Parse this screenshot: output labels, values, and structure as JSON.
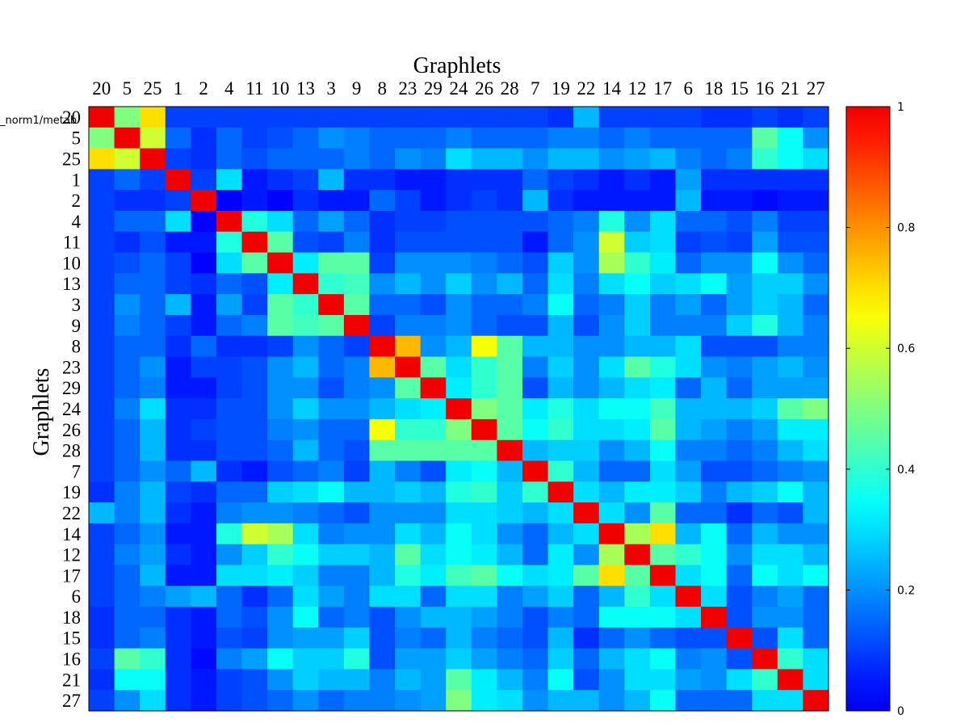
{
  "chart_data": {
    "type": "heatmap",
    "title": "Graphlets",
    "xlabel": "Graphlets",
    "ylabel": "Graphlets",
    "stray_label": "_norm1/metab",
    "order": [
      20,
      5,
      25,
      1,
      2,
      4,
      11,
      10,
      13,
      3,
      9,
      8,
      23,
      29,
      24,
      26,
      28,
      7,
      19,
      22,
      14,
      12,
      17,
      6,
      18,
      15,
      16,
      21,
      27
    ],
    "row_labels": [
      "20",
      "5",
      "25",
      "1",
      "2",
      "4",
      "11",
      "10",
      "13",
      "3",
      "9",
      "8",
      "23",
      "29",
      "24",
      "26",
      "28",
      "7",
      "19",
      "22",
      "14",
      "12",
      "17",
      "6",
      "18",
      "15",
      "16",
      "21",
      "27"
    ],
    "col_labels": [
      "20",
      "5",
      "25",
      "1",
      "2",
      "4",
      "11",
      "10",
      "13",
      "3",
      "9",
      "8",
      "23",
      "29",
      "24",
      "26",
      "28",
      "7",
      "19",
      "22",
      "14",
      "12",
      "17",
      "6",
      "18",
      "15",
      "16",
      "21",
      "27"
    ],
    "colorbar": {
      "min": 0,
      "max": 1,
      "ticks": [
        0,
        0.2,
        0.4,
        0.6,
        0.8,
        1
      ],
      "tick_labels": [
        "0",
        "0.2",
        "0.4",
        "0.6",
        "0.8",
        "1"
      ]
    },
    "colormap": "jet",
    "values": [
      [
        1.0,
        0.5,
        0.7,
        0.1,
        0.1,
        0.1,
        0.1,
        0.1,
        0.1,
        0.1,
        0.1,
        0.1,
        0.1,
        0.1,
        0.1,
        0.1,
        0.1,
        0.1,
        0.08,
        0.25,
        0.1,
        0.1,
        0.1,
        0.1,
        0.08,
        0.08,
        0.1,
        0.08,
        0.1
      ],
      [
        0.5,
        1.0,
        0.6,
        0.15,
        0.08,
        0.15,
        0.1,
        0.12,
        0.15,
        0.2,
        0.18,
        0.15,
        0.15,
        0.15,
        0.18,
        0.15,
        0.15,
        0.15,
        0.18,
        0.18,
        0.15,
        0.18,
        0.15,
        0.15,
        0.15,
        0.15,
        0.45,
        0.35,
        0.2
      ],
      [
        0.7,
        0.6,
        1.0,
        0.1,
        0.08,
        0.15,
        0.12,
        0.15,
        0.15,
        0.15,
        0.18,
        0.15,
        0.2,
        0.18,
        0.3,
        0.25,
        0.25,
        0.2,
        0.25,
        0.25,
        0.2,
        0.22,
        0.25,
        0.18,
        0.15,
        0.18,
        0.4,
        0.35,
        0.3
      ],
      [
        0.1,
        0.15,
        0.1,
        1.0,
        0.1,
        0.3,
        0.05,
        0.08,
        0.1,
        0.25,
        0.08,
        0.08,
        0.05,
        0.05,
        0.08,
        0.08,
        0.08,
        0.15,
        0.1,
        0.08,
        0.05,
        0.08,
        0.05,
        0.22,
        0.08,
        0.08,
        0.08,
        0.08,
        0.08
      ],
      [
        0.1,
        0.08,
        0.08,
        0.1,
        1.0,
        0.02,
        0.05,
        0.02,
        0.08,
        0.05,
        0.05,
        0.15,
        0.1,
        0.05,
        0.08,
        0.1,
        0.08,
        0.25,
        0.08,
        0.05,
        0.05,
        0.05,
        0.05,
        0.25,
        0.05,
        0.05,
        0.03,
        0.05,
        0.05
      ],
      [
        0.1,
        0.15,
        0.15,
        0.3,
        0.02,
        1.0,
        0.38,
        0.3,
        0.15,
        0.22,
        0.15,
        0.08,
        0.1,
        0.1,
        0.12,
        0.12,
        0.12,
        0.12,
        0.15,
        0.18,
        0.38,
        0.2,
        0.3,
        0.15,
        0.15,
        0.12,
        0.18,
        0.1,
        0.1
      ],
      [
        0.1,
        0.08,
        0.12,
        0.05,
        0.05,
        0.38,
        1.0,
        0.45,
        0.12,
        0.1,
        0.18,
        0.08,
        0.12,
        0.12,
        0.12,
        0.12,
        0.12,
        0.05,
        0.15,
        0.2,
        0.6,
        0.28,
        0.3,
        0.1,
        0.12,
        0.1,
        0.22,
        0.12,
        0.12
      ],
      [
        0.1,
        0.12,
        0.15,
        0.1,
        0.02,
        0.3,
        0.45,
        1.0,
        0.32,
        0.45,
        0.45,
        0.1,
        0.2,
        0.2,
        0.2,
        0.18,
        0.15,
        0.12,
        0.28,
        0.2,
        0.55,
        0.4,
        0.32,
        0.15,
        0.2,
        0.2,
        0.35,
        0.2,
        0.15
      ],
      [
        0.1,
        0.15,
        0.15,
        0.1,
        0.08,
        0.15,
        0.12,
        0.32,
        1.0,
        0.4,
        0.42,
        0.2,
        0.25,
        0.2,
        0.28,
        0.2,
        0.25,
        0.15,
        0.3,
        0.18,
        0.3,
        0.35,
        0.28,
        0.3,
        0.35,
        0.22,
        0.28,
        0.28,
        0.2
      ],
      [
        0.1,
        0.2,
        0.15,
        0.25,
        0.05,
        0.22,
        0.1,
        0.45,
        0.4,
        1.0,
        0.45,
        0.15,
        0.15,
        0.12,
        0.2,
        0.15,
        0.15,
        0.18,
        0.35,
        0.15,
        0.18,
        0.28,
        0.18,
        0.22,
        0.15,
        0.22,
        0.28,
        0.25,
        0.15
      ],
      [
        0.1,
        0.18,
        0.15,
        0.1,
        0.05,
        0.15,
        0.18,
        0.45,
        0.42,
        0.45,
        1.0,
        0.1,
        0.18,
        0.18,
        0.2,
        0.15,
        0.12,
        0.12,
        0.25,
        0.12,
        0.2,
        0.28,
        0.18,
        0.18,
        0.18,
        0.28,
        0.38,
        0.25,
        0.18
      ],
      [
        0.1,
        0.15,
        0.15,
        0.08,
        0.15,
        0.08,
        0.08,
        0.1,
        0.2,
        0.15,
        0.1,
        1.0,
        0.75,
        0.2,
        0.25,
        0.65,
        0.45,
        0.25,
        0.25,
        0.2,
        0.2,
        0.25,
        0.25,
        0.3,
        0.12,
        0.12,
        0.12,
        0.18,
        0.18
      ],
      [
        0.1,
        0.15,
        0.2,
        0.05,
        0.1,
        0.1,
        0.12,
        0.2,
        0.25,
        0.15,
        0.18,
        0.75,
        1.0,
        0.45,
        0.3,
        0.4,
        0.45,
        0.18,
        0.28,
        0.2,
        0.3,
        0.45,
        0.38,
        0.3,
        0.2,
        0.18,
        0.22,
        0.25,
        0.2
      ],
      [
        0.1,
        0.15,
        0.18,
        0.05,
        0.05,
        0.1,
        0.12,
        0.2,
        0.2,
        0.12,
        0.18,
        0.2,
        0.45,
        1.0,
        0.32,
        0.4,
        0.45,
        0.12,
        0.25,
        0.2,
        0.25,
        0.3,
        0.32,
        0.15,
        0.25,
        0.15,
        0.22,
        0.22,
        0.22
      ],
      [
        0.1,
        0.18,
        0.3,
        0.08,
        0.08,
        0.12,
        0.12,
        0.2,
        0.28,
        0.2,
        0.2,
        0.25,
        0.3,
        0.32,
        1.0,
        0.5,
        0.45,
        0.32,
        0.38,
        0.3,
        0.35,
        0.35,
        0.42,
        0.25,
        0.25,
        0.25,
        0.28,
        0.45,
        0.5
      ],
      [
        0.1,
        0.15,
        0.25,
        0.08,
        0.1,
        0.12,
        0.12,
        0.18,
        0.2,
        0.15,
        0.15,
        0.65,
        0.4,
        0.4,
        0.5,
        1.0,
        0.45,
        0.35,
        0.4,
        0.3,
        0.3,
        0.32,
        0.45,
        0.25,
        0.22,
        0.18,
        0.22,
        0.32,
        0.32
      ],
      [
        0.1,
        0.15,
        0.25,
        0.08,
        0.08,
        0.12,
        0.12,
        0.15,
        0.25,
        0.15,
        0.12,
        0.45,
        0.45,
        0.45,
        0.45,
        0.45,
        1.0,
        0.25,
        0.28,
        0.28,
        0.2,
        0.25,
        0.35,
        0.18,
        0.18,
        0.15,
        0.18,
        0.25,
        0.3
      ],
      [
        0.1,
        0.15,
        0.2,
        0.15,
        0.25,
        0.08,
        0.05,
        0.12,
        0.15,
        0.18,
        0.1,
        0.25,
        0.18,
        0.12,
        0.32,
        0.35,
        0.25,
        1.0,
        0.4,
        0.25,
        0.15,
        0.15,
        0.3,
        0.22,
        0.12,
        0.12,
        0.15,
        0.18,
        0.2
      ],
      [
        0.08,
        0.18,
        0.25,
        0.1,
        0.08,
        0.15,
        0.15,
        0.28,
        0.3,
        0.35,
        0.25,
        0.25,
        0.28,
        0.25,
        0.38,
        0.4,
        0.28,
        0.4,
        1.0,
        0.3,
        0.25,
        0.32,
        0.32,
        0.28,
        0.18,
        0.25,
        0.28,
        0.35,
        0.25
      ],
      [
        0.25,
        0.18,
        0.25,
        0.08,
        0.05,
        0.18,
        0.2,
        0.2,
        0.18,
        0.15,
        0.12,
        0.2,
        0.2,
        0.2,
        0.3,
        0.3,
        0.28,
        0.25,
        0.3,
        1.0,
        0.3,
        0.2,
        0.45,
        0.15,
        0.15,
        0.08,
        0.15,
        0.12,
        0.25
      ],
      [
        0.1,
        0.15,
        0.2,
        0.05,
        0.05,
        0.38,
        0.6,
        0.55,
        0.3,
        0.18,
        0.2,
        0.2,
        0.3,
        0.25,
        0.35,
        0.3,
        0.2,
        0.15,
        0.25,
        0.3,
        1.0,
        0.55,
        0.7,
        0.25,
        0.35,
        0.15,
        0.25,
        0.2,
        0.2
      ],
      [
        0.1,
        0.18,
        0.22,
        0.08,
        0.05,
        0.2,
        0.28,
        0.4,
        0.35,
        0.28,
        0.28,
        0.25,
        0.45,
        0.3,
        0.35,
        0.32,
        0.25,
        0.15,
        0.32,
        0.2,
        0.55,
        1.0,
        0.45,
        0.4,
        0.35,
        0.2,
        0.3,
        0.3,
        0.25
      ],
      [
        0.1,
        0.15,
        0.25,
        0.05,
        0.05,
        0.3,
        0.3,
        0.32,
        0.28,
        0.18,
        0.18,
        0.25,
        0.38,
        0.32,
        0.42,
        0.45,
        0.35,
        0.3,
        0.32,
        0.45,
        0.7,
        0.45,
        1.0,
        0.3,
        0.35,
        0.15,
        0.35,
        0.3,
        0.35
      ],
      [
        0.1,
        0.15,
        0.18,
        0.22,
        0.25,
        0.15,
        0.08,
        0.15,
        0.3,
        0.22,
        0.18,
        0.3,
        0.3,
        0.15,
        0.3,
        0.3,
        0.18,
        0.22,
        0.28,
        0.15,
        0.25,
        0.4,
        0.3,
        1.0,
        0.3,
        0.12,
        0.18,
        0.22,
        0.15
      ],
      [
        0.08,
        0.15,
        0.15,
        0.08,
        0.05,
        0.15,
        0.12,
        0.2,
        0.35,
        0.15,
        0.18,
        0.12,
        0.2,
        0.25,
        0.25,
        0.22,
        0.18,
        0.12,
        0.18,
        0.15,
        0.35,
        0.35,
        0.35,
        0.3,
        1.0,
        0.12,
        0.2,
        0.2,
        0.15
      ],
      [
        0.08,
        0.15,
        0.18,
        0.08,
        0.05,
        0.12,
        0.1,
        0.2,
        0.22,
        0.22,
        0.28,
        0.12,
        0.18,
        0.15,
        0.25,
        0.18,
        0.15,
        0.12,
        0.25,
        0.08,
        0.15,
        0.2,
        0.15,
        0.12,
        0.12,
        1.0,
        0.12,
        0.3,
        0.15
      ],
      [
        0.1,
        0.45,
        0.4,
        0.08,
        0.03,
        0.18,
        0.22,
        0.35,
        0.28,
        0.28,
        0.38,
        0.12,
        0.22,
        0.22,
        0.28,
        0.22,
        0.18,
        0.15,
        0.28,
        0.15,
        0.25,
        0.3,
        0.35,
        0.18,
        0.2,
        0.12,
        1.0,
        0.4,
        0.3
      ],
      [
        0.08,
        0.35,
        0.35,
        0.08,
        0.05,
        0.1,
        0.12,
        0.2,
        0.28,
        0.25,
        0.25,
        0.18,
        0.25,
        0.22,
        0.45,
        0.32,
        0.25,
        0.18,
        0.35,
        0.12,
        0.2,
        0.3,
        0.3,
        0.22,
        0.2,
        0.3,
        0.4,
        1.0,
        0.3
      ],
      [
        0.1,
        0.2,
        0.3,
        0.08,
        0.05,
        0.1,
        0.12,
        0.15,
        0.2,
        0.15,
        0.18,
        0.18,
        0.2,
        0.22,
        0.5,
        0.32,
        0.3,
        0.2,
        0.25,
        0.25,
        0.2,
        0.25,
        0.35,
        0.15,
        0.15,
        0.15,
        0.3,
        0.3,
        1.0
      ]
    ]
  }
}
